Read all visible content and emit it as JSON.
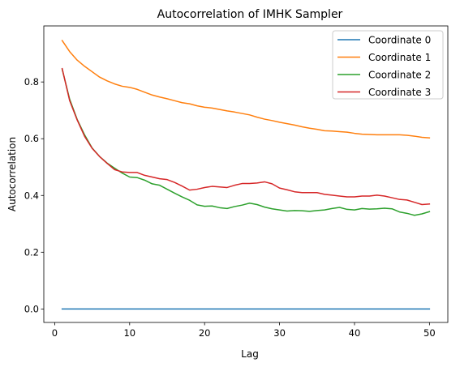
{
  "chart_data": {
    "type": "line",
    "title": "Autocorrelation of IMHK Sampler",
    "xlabel": "Lag",
    "ylabel": "Autocorrelation",
    "xlim": [
      -1.45,
      52.45
    ],
    "ylim": [
      -0.0475,
      0.9975
    ],
    "xticks": [
      0,
      10,
      20,
      30,
      40,
      50
    ],
    "xtick_labels": [
      "0",
      "10",
      "20",
      "30",
      "40",
      "50"
    ],
    "yticks": [
      0.0,
      0.2,
      0.4,
      0.6,
      0.8
    ],
    "ytick_labels": [
      "0.0",
      "0.2",
      "0.4",
      "0.6",
      "0.8"
    ],
    "grid": false,
    "legend_position": "top-right",
    "x": [
      1,
      2,
      3,
      4,
      5,
      6,
      7,
      8,
      9,
      10,
      11,
      12,
      13,
      14,
      15,
      16,
      17,
      18,
      19,
      20,
      21,
      22,
      23,
      24,
      25,
      26,
      27,
      28,
      29,
      30,
      31,
      32,
      33,
      34,
      35,
      36,
      37,
      38,
      39,
      40,
      41,
      42,
      43,
      44,
      45,
      46,
      47,
      48,
      49,
      50
    ],
    "series": [
      {
        "name": "Coordinate 0",
        "color": "#1f77b4",
        "values": [
          0,
          0,
          0,
          0,
          0,
          0,
          0,
          0,
          0,
          0,
          0,
          0,
          0,
          0,
          0,
          0,
          0,
          0,
          0,
          0,
          0,
          0,
          0,
          0,
          0,
          0,
          0,
          0,
          0,
          0,
          0,
          0,
          0,
          0,
          0,
          0,
          0,
          0,
          0,
          0,
          0,
          0,
          0,
          0,
          0,
          0,
          0,
          0,
          0,
          0
        ]
      },
      {
        "name": "Coordinate 1",
        "color": "#ff7f0e",
        "values": [
          0.946,
          0.907,
          0.877,
          0.855,
          0.836,
          0.817,
          0.804,
          0.793,
          0.785,
          0.781,
          0.774,
          0.764,
          0.754,
          0.747,
          0.741,
          0.734,
          0.727,
          0.723,
          0.716,
          0.711,
          0.708,
          0.703,
          0.698,
          0.694,
          0.689,
          0.684,
          0.676,
          0.669,
          0.664,
          0.658,
          0.653,
          0.648,
          0.642,
          0.637,
          0.633,
          0.628,
          0.627,
          0.625,
          0.623,
          0.619,
          0.616,
          0.615,
          0.614,
          0.614,
          0.614,
          0.614,
          0.612,
          0.609,
          0.605,
          0.603
        ]
      },
      {
        "name": "Coordinate 2",
        "color": "#2ca02c",
        "values": [
          0.845,
          0.739,
          0.668,
          0.613,
          0.567,
          0.537,
          0.514,
          0.496,
          0.479,
          0.465,
          0.463,
          0.454,
          0.441,
          0.436,
          0.422,
          0.408,
          0.395,
          0.383,
          0.367,
          0.362,
          0.363,
          0.357,
          0.354,
          0.361,
          0.366,
          0.373,
          0.368,
          0.359,
          0.353,
          0.349,
          0.345,
          0.347,
          0.346,
          0.344,
          0.347,
          0.349,
          0.354,
          0.358,
          0.351,
          0.349,
          0.354,
          0.352,
          0.353,
          0.355,
          0.353,
          0.342,
          0.337,
          0.33,
          0.335,
          0.343
        ]
      },
      {
        "name": "Coordinate 3",
        "color": "#d62728",
        "values": [
          0.847,
          0.734,
          0.666,
          0.608,
          0.566,
          0.537,
          0.513,
          0.491,
          0.483,
          0.481,
          0.481,
          0.471,
          0.465,
          0.459,
          0.456,
          0.446,
          0.433,
          0.419,
          0.422,
          0.428,
          0.432,
          0.43,
          0.428,
          0.436,
          0.442,
          0.442,
          0.444,
          0.448,
          0.441,
          0.426,
          0.42,
          0.413,
          0.41,
          0.41,
          0.41,
          0.404,
          0.401,
          0.398,
          0.395,
          0.395,
          0.398,
          0.398,
          0.401,
          0.398,
          0.392,
          0.386,
          0.384,
          0.376,
          0.368,
          0.37
        ]
      }
    ]
  }
}
